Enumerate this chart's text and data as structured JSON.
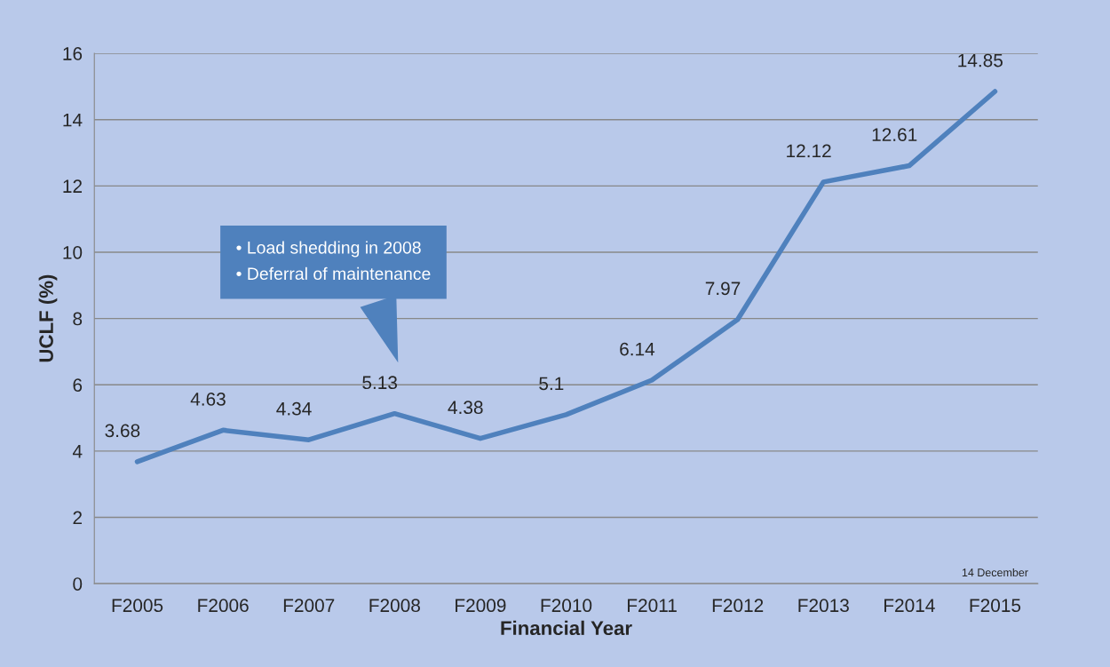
{
  "chart_data": {
    "type": "line",
    "xlabel": "Financial Year",
    "ylabel": "UCLF (%)",
    "categories": [
      "F2005",
      "F2006",
      "F2007",
      "F2008",
      "F2009",
      "F2010",
      "F2011",
      "F2012",
      "F2013",
      "F2014",
      "F2015"
    ],
    "series": [
      {
        "color": "#4f81bd",
        "values": [
          3.68,
          4.63,
          4.34,
          5.13,
          4.38,
          5.1,
          6.14,
          7.97,
          12.12,
          12.61,
          14.85
        ]
      }
    ],
    "ylim": [
      0,
      16
    ],
    "yticks": [
      0,
      2,
      4,
      6,
      8,
      10,
      12,
      14,
      16
    ],
    "grid": "y",
    "data_labels": true,
    "marker": "none",
    "line_style": "solid",
    "annotations": [
      "• Load shedding in 2008\n• Deferral of maintenance",
      "14 December"
    ]
  }
}
